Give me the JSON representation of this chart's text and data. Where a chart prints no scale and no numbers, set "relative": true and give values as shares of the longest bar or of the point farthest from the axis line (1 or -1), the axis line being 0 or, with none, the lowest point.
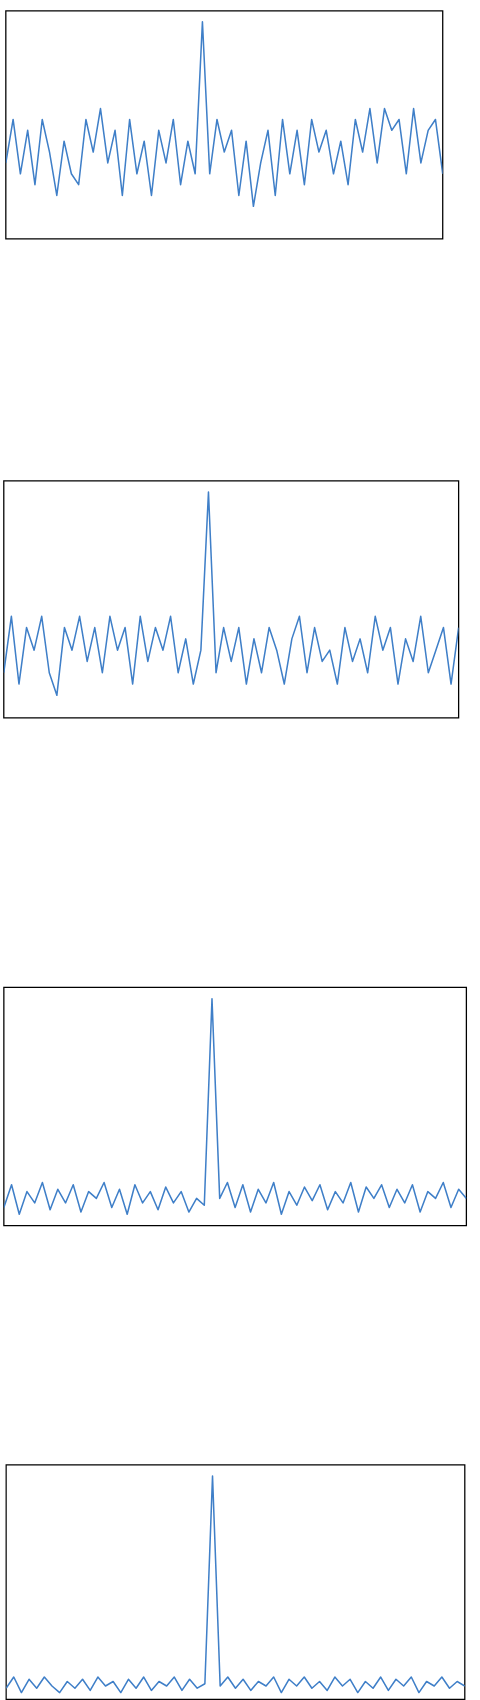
{
  "chart_data": [
    {
      "type": "line",
      "relative": true,
      "categories": [
        null,
        null,
        null,
        null,
        null,
        null,
        null,
        null,
        null,
        null,
        null,
        null,
        null,
        null,
        null,
        null,
        null,
        null,
        null,
        null,
        null,
        null,
        null,
        null,
        null,
        null,
        null,
        null,
        null,
        null,
        null,
        null,
        null,
        null,
        null,
        null,
        null,
        null,
        null,
        null,
        null,
        null,
        null,
        null,
        null,
        null,
        null,
        null,
        null,
        null,
        null,
        null,
        null,
        null,
        null,
        null,
        null,
        null,
        null,
        null,
        null
      ],
      "series": [
        {
          "color": "#3f7fc8",
          "values": [
            0.35,
            0.55,
            0.3,
            0.5,
            0.25,
            0.55,
            0.4,
            0.2,
            0.45,
            0.3,
            0.25,
            0.55,
            0.4,
            0.6,
            0.35,
            0.5,
            0.2,
            0.55,
            0.3,
            0.45,
            0.2,
            0.5,
            0.35,
            0.55,
            0.25,
            0.45,
            0.3,
            1,
            0.3,
            0.55,
            0.4,
            0.5,
            0.2,
            0.45,
            0.15,
            0.35,
            0.5,
            0.2,
            0.55,
            0.3,
            0.5,
            0.25,
            0.55,
            0.4,
            0.5,
            0.3,
            0.45,
            0.25,
            0.55,
            0.4,
            0.6,
            0.35,
            0.6,
            0.5,
            0.55,
            0.3,
            0.6,
            0.35,
            0.5,
            0.55,
            0.3
          ]
        }
      ]
    },
    {
      "type": "line",
      "relative": true,
      "categories": [
        null,
        null,
        null,
        null,
        null,
        null,
        null,
        null,
        null,
        null,
        null,
        null,
        null,
        null,
        null,
        null,
        null,
        null,
        null,
        null,
        null,
        null,
        null,
        null,
        null,
        null,
        null,
        null,
        null,
        null,
        null,
        null,
        null,
        null,
        null,
        null,
        null,
        null,
        null,
        null,
        null,
        null,
        null,
        null,
        null,
        null,
        null,
        null,
        null,
        null,
        null,
        null,
        null,
        null,
        null,
        null,
        null,
        null,
        null,
        null,
        null
      ],
      "series": [
        {
          "color": "#3f7fc8",
          "values": [
            0.2,
            0.45,
            0.15,
            0.4,
            0.3,
            0.45,
            0.2,
            0.1,
            0.4,
            0.3,
            0.45,
            0.25,
            0.4,
            0.2,
            0.45,
            0.3,
            0.4,
            0.15,
            0.45,
            0.25,
            0.4,
            0.3,
            0.45,
            0.2,
            0.35,
            0.15,
            0.3,
            1,
            0.2,
            0.4,
            0.25,
            0.4,
            0.15,
            0.35,
            0.2,
            0.4,
            0.3,
            0.15,
            0.35,
            0.45,
            0.2,
            0.4,
            0.25,
            0.3,
            0.15,
            0.4,
            0.25,
            0.35,
            0.2,
            0.45,
            0.3,
            0.4,
            0.15,
            0.35,
            0.25,
            0.45,
            0.2,
            0.3,
            0.4,
            0.15,
            0.4
          ]
        }
      ]
    },
    {
      "type": "line",
      "relative": true,
      "categories": [
        null,
        null,
        null,
        null,
        null,
        null,
        null,
        null,
        null,
        null,
        null,
        null,
        null,
        null,
        null,
        null,
        null,
        null,
        null,
        null,
        null,
        null,
        null,
        null,
        null,
        null,
        null,
        null,
        null,
        null,
        null,
        null,
        null,
        null,
        null,
        null,
        null,
        null,
        null,
        null,
        null,
        null,
        null,
        null,
        null,
        null,
        null,
        null,
        null,
        null,
        null,
        null,
        null,
        null,
        null,
        null,
        null,
        null,
        null,
        null,
        null
      ],
      "series": [
        {
          "color": "#3f7fc8",
          "values": [
            0.08,
            0.18,
            0.05,
            0.15,
            0.1,
            0.19,
            0.07,
            0.16,
            0.1,
            0.18,
            0.06,
            0.15,
            0.12,
            0.19,
            0.08,
            0.16,
            0.05,
            0.18,
            0.1,
            0.15,
            0.07,
            0.17,
            0.1,
            0.15,
            0.06,
            0.12,
            0.09,
            1,
            0.12,
            0.19,
            0.08,
            0.18,
            0.06,
            0.16,
            0.1,
            0.19,
            0.05,
            0.15,
            0.09,
            0.17,
            0.11,
            0.18,
            0.07,
            0.15,
            0.1,
            0.19,
            0.06,
            0.17,
            0.12,
            0.18,
            0.08,
            0.16,
            0.1,
            0.18,
            0.06,
            0.15,
            0.12,
            0.19,
            0.08,
            0.16,
            0.12
          ]
        }
      ]
    },
    {
      "type": "line",
      "relative": true,
      "categories": [
        null,
        null,
        null,
        null,
        null,
        null,
        null,
        null,
        null,
        null,
        null,
        null,
        null,
        null,
        null,
        null,
        null,
        null,
        null,
        null,
        null,
        null,
        null,
        null,
        null,
        null,
        null,
        null,
        null,
        null,
        null,
        null,
        null,
        null,
        null,
        null,
        null,
        null,
        null,
        null,
        null,
        null,
        null,
        null,
        null,
        null,
        null,
        null,
        null,
        null,
        null,
        null,
        null,
        null,
        null,
        null,
        null,
        null,
        null,
        null,
        null
      ],
      "series": [
        {
          "color": "#3f7fc8",
          "values": [
            0.05,
            0.1,
            0.03,
            0.09,
            0.05,
            0.1,
            0.06,
            0.03,
            0.08,
            0.05,
            0.09,
            0.04,
            0.1,
            0.06,
            0.08,
            0.03,
            0.09,
            0.05,
            0.1,
            0.04,
            0.08,
            0.06,
            0.1,
            0.04,
            0.09,
            0.05,
            0.07,
            1,
            0.06,
            0.1,
            0.05,
            0.09,
            0.04,
            0.08,
            0.06,
            0.1,
            0.03,
            0.09,
            0.06,
            0.1,
            0.05,
            0.08,
            0.04,
            0.1,
            0.06,
            0.09,
            0.03,
            0.08,
            0.05,
            0.1,
            0.04,
            0.09,
            0.06,
            0.1,
            0.03,
            0.08,
            0.06,
            0.1,
            0.05,
            0.08,
            0.06
          ]
        }
      ]
    }
  ]
}
